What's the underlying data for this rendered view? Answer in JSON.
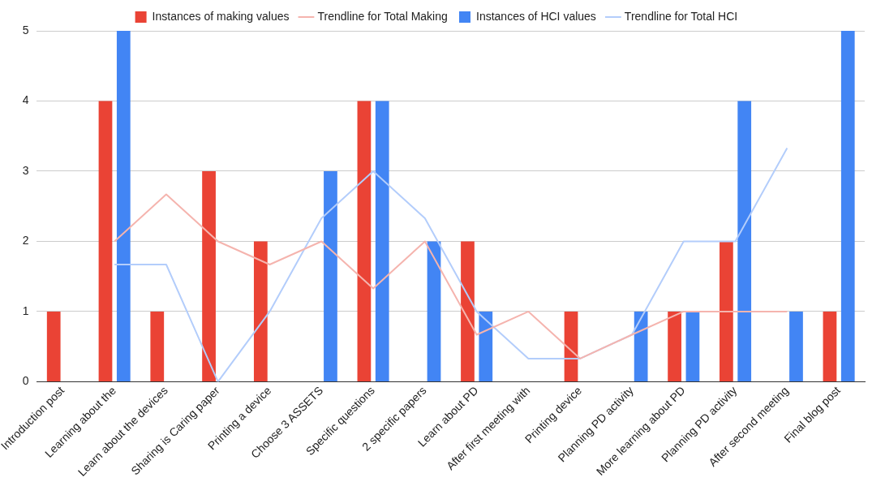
{
  "chart_data": {
    "type": "bar",
    "categories": [
      "Introduction post",
      "Learning about the",
      "Learn about the devices",
      "Sharing is Caring paper",
      "Printing a device",
      "Choose 3 ASSETS",
      "Specific questions",
      "2 specific papers",
      "Learn about PD",
      "After first meeting with",
      "Printing device",
      "Planning PD activity",
      "More learning about PD",
      "Planning PD activity",
      "After second meeting",
      "Final blog post"
    ],
    "series": [
      {
        "name": "Instances of making values",
        "color": "#ea4335",
        "values": [
          1,
          4,
          1,
          3,
          2,
          0,
          4,
          0,
          2,
          0,
          1,
          0,
          1,
          2,
          0,
          1
        ]
      },
      {
        "name": "Trendline for Total Making",
        "color": "#f5b4ae",
        "type": "line",
        "values": [
          null,
          2,
          2.67,
          2,
          1.67,
          2,
          1.33,
          2,
          0.67,
          1,
          0.33,
          0.67,
          1,
          1,
          1,
          null
        ]
      },
      {
        "name": "Instances of HCI values",
        "color": "#4285f4",
        "values": [
          0,
          5,
          0,
          0,
          0,
          3,
          4,
          2,
          1,
          0,
          0,
          1,
          1,
          4,
          1,
          5
        ]
      },
      {
        "name": "Trendline for Total HCI",
        "color": "#b3cdfb",
        "type": "line",
        "values": [
          null,
          1.67,
          1.67,
          0,
          1,
          2.33,
          3,
          2.33,
          1,
          0.33,
          0.33,
          0.67,
          2,
          2,
          3.33,
          null
        ]
      }
    ],
    "ylim": [
      0,
      5
    ],
    "yticks": [
      0,
      1,
      2,
      3,
      4,
      5
    ],
    "grid": "y",
    "legend": "top",
    "marker": "none"
  }
}
